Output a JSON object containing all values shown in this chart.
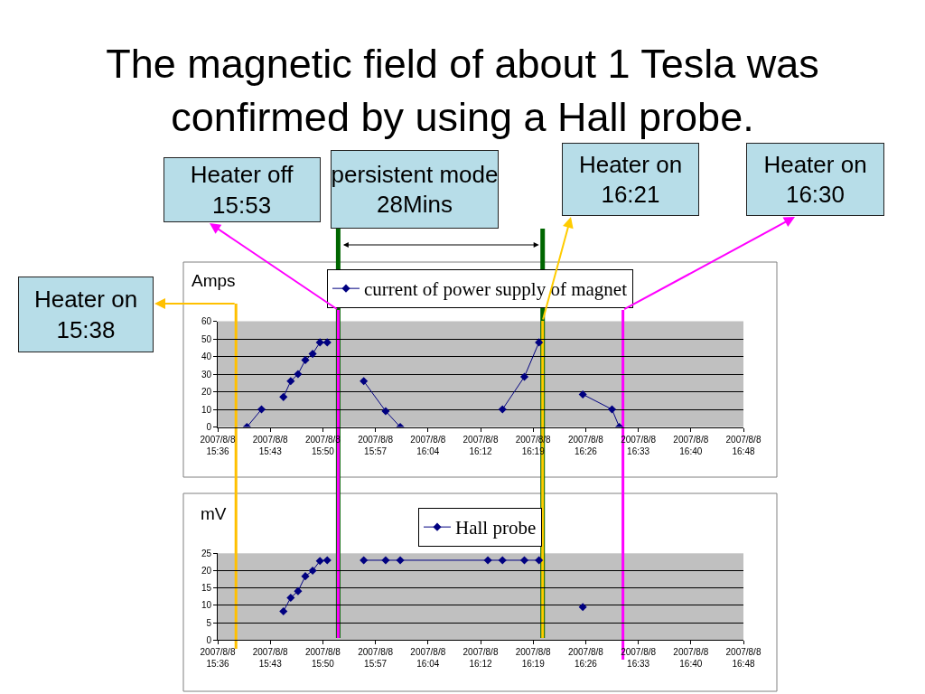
{
  "chart_data": [
    {
      "type": "line",
      "title": "The magnetic field of about 1 Tesla was\nconfirmed by using a Hall probe.",
      "ylabel": "Amps",
      "x": [
        "2007-08-08T15:40",
        "2007-08-08T15:42",
        "2007-08-08T15:43",
        "2007-08-08T15:45",
        "2007-08-08T15:46",
        "2007-08-08T15:47",
        "2007-08-08T15:48",
        "2007-08-08T15:49",
        "2007-08-08T15:50",
        "2007-08-08T15:51",
        "2007-08-08T15:53",
        "2007-08-08T15:56",
        "2007-08-08T15:59",
        "2007-08-08T16:01",
        "2007-08-08T16:08",
        "2007-08-08T16:15",
        "2007-08-08T16:18",
        "2007-08-08T16:20",
        "2007-08-08T16:23",
        "2007-08-08T16:26",
        "2007-08-08T16:30",
        "2007-08-08T16:31"
      ],
      "series": [
        {
          "name": "current of power supply of magnet",
          "color": "#000080",
          "values": [
            0,
            10,
            null,
            17,
            26,
            30,
            38,
            41.5,
            48,
            48,
            null,
            26,
            9,
            0,
            null,
            10,
            28.5,
            48,
            null,
            18.5,
            10,
            0
          ]
        }
      ],
      "xlim": [
        "2007-08-08T15:36",
        "2007-08-08T16:48"
      ],
      "xticks": [
        {
          "value": "2007-08-08T15:36:00",
          "label": "2007/8/8\n15:36"
        },
        {
          "value": "2007-08-08T15:43:12",
          "label": "2007/8/8\n15:43"
        },
        {
          "value": "2007-08-08T15:50:24",
          "label": "2007/8/8\n15:50"
        },
        {
          "value": "2007-08-08T15:57:36",
          "label": "2007/8/8\n15:57"
        },
        {
          "value": "2007-08-08T16:04:48",
          "label": "2007/8/8\n16:04"
        },
        {
          "value": "2007-08-08T16:12:00",
          "label": "2007/8/8\n16:12"
        },
        {
          "value": "2007-08-08T16:19:12",
          "label": "2007/8/8\n16:19"
        },
        {
          "value": "2007-08-08T16:26:24",
          "label": "2007/8/8\n16:26"
        },
        {
          "value": "2007-08-08T16:33:36",
          "label": "2007/8/8\n16:33"
        },
        {
          "value": "2007-08-08T16:40:48",
          "label": "2007/8/8\n16:40"
        },
        {
          "value": "2007-08-08T16:48:00",
          "label": "2007/8/8\n16:48"
        }
      ],
      "ylim": [
        0,
        60
      ],
      "yticks": [
        0,
        10,
        20,
        30,
        40,
        50,
        60
      ],
      "grid": "y",
      "legend": "top",
      "marker": "diamond",
      "ref_lines": [
        {
          "axis": "x",
          "value": "2007-08-08T15:52:30",
          "label": "persistent mode\n28Mins",
          "color": "#006600"
        },
        {
          "axis": "x",
          "value": "2007-08-08T16:20:30",
          "color": "#006600"
        },
        {
          "axis": "x",
          "value": "2007-08-08T15:38:30",
          "label": "Heater on\n15:38",
          "color": "#ffc000"
        },
        {
          "axis": "x",
          "value": "2007-08-08T15:52:30",
          "label": "Heater off\n15:53",
          "color": "#ff00ff"
        },
        {
          "axis": "x",
          "value": "2007-08-08T16:20:30",
          "label": "Heater on\n16:21",
          "color": "#ffcc00"
        },
        {
          "axis": "x",
          "value": "2007-08-08T16:31:30",
          "label": "Heater on\n16:30",
          "color": "#ff00ff"
        }
      ]
    },
    {
      "type": "line",
      "ylabel": "mV",
      "x": [
        "2007-08-08T15:45",
        "2007-08-08T15:46",
        "2007-08-08T15:47",
        "2007-08-08T15:48",
        "2007-08-08T15:49",
        "2007-08-08T15:50",
        "2007-08-08T15:51",
        "2007-08-08T15:53",
        "2007-08-08T15:56",
        "2007-08-08T15:59",
        "2007-08-08T16:01",
        "2007-08-08T16:13",
        "2007-08-08T16:15",
        "2007-08-08T16:18",
        "2007-08-08T16:20",
        "2007-08-08T16:23",
        "2007-08-08T16:26"
      ],
      "series": [
        {
          "name": "Hall probe",
          "color": "#000080",
          "values": [
            8.3,
            12.2,
            14.1,
            18.4,
            20,
            22.8,
            23,
            null,
            23,
            23,
            23,
            23,
            23,
            23,
            23,
            null,
            9.5
          ]
        }
      ],
      "xlim": [
        "2007-08-08T15:36",
        "2007-08-08T16:48"
      ],
      "xticks": [
        {
          "value": "2007-08-08T15:36:00",
          "label": "2007/8/8\n15:36"
        },
        {
          "value": "2007-08-08T15:43:12",
          "label": "2007/8/8\n15:43"
        },
        {
          "value": "2007-08-08T15:50:24",
          "label": "2007/8/8\n15:50"
        },
        {
          "value": "2007-08-08T15:57:36",
          "label": "2007/8/8\n15:57"
        },
        {
          "value": "2007-08-08T16:04:48",
          "label": "2007/8/8\n16:04"
        },
        {
          "value": "2007-08-08T16:12:00",
          "label": "2007/8/8\n16:12"
        },
        {
          "value": "2007-08-08T16:19:12",
          "label": "2007/8/8\n16:19"
        },
        {
          "value": "2007-08-08T16:26:24",
          "label": "2007/8/8\n16:26"
        },
        {
          "value": "2007-08-08T16:33:36",
          "label": "2007/8/8\n16:33"
        },
        {
          "value": "2007-08-08T16:40:48",
          "label": "2007/8/8\n16:40"
        },
        {
          "value": "2007-08-08T16:48:00",
          "label": "2007/8/8\n16:48"
        }
      ],
      "ylim": [
        0,
        25
      ],
      "yticks": [
        0,
        5,
        10,
        15,
        20,
        25
      ],
      "grid": "y",
      "legend": "top",
      "marker": "diamond",
      "ref_lines": [
        {
          "axis": "x",
          "value": "2007-08-08T15:52:30",
          "color": "#006600"
        },
        {
          "axis": "x",
          "value": "2007-08-08T16:20:30",
          "color": "#006600"
        },
        {
          "axis": "x",
          "value": "2007-08-08T15:38:30",
          "color": "#ffc000"
        },
        {
          "axis": "x",
          "value": "2007-08-08T15:52:30",
          "color": "#ff00ff"
        },
        {
          "axis": "x",
          "value": "2007-08-08T16:20:30",
          "color": "#ffcc00"
        },
        {
          "axis": "x",
          "value": "2007-08-08T16:31:30",
          "color": "#ff00ff"
        }
      ]
    }
  ]
}
